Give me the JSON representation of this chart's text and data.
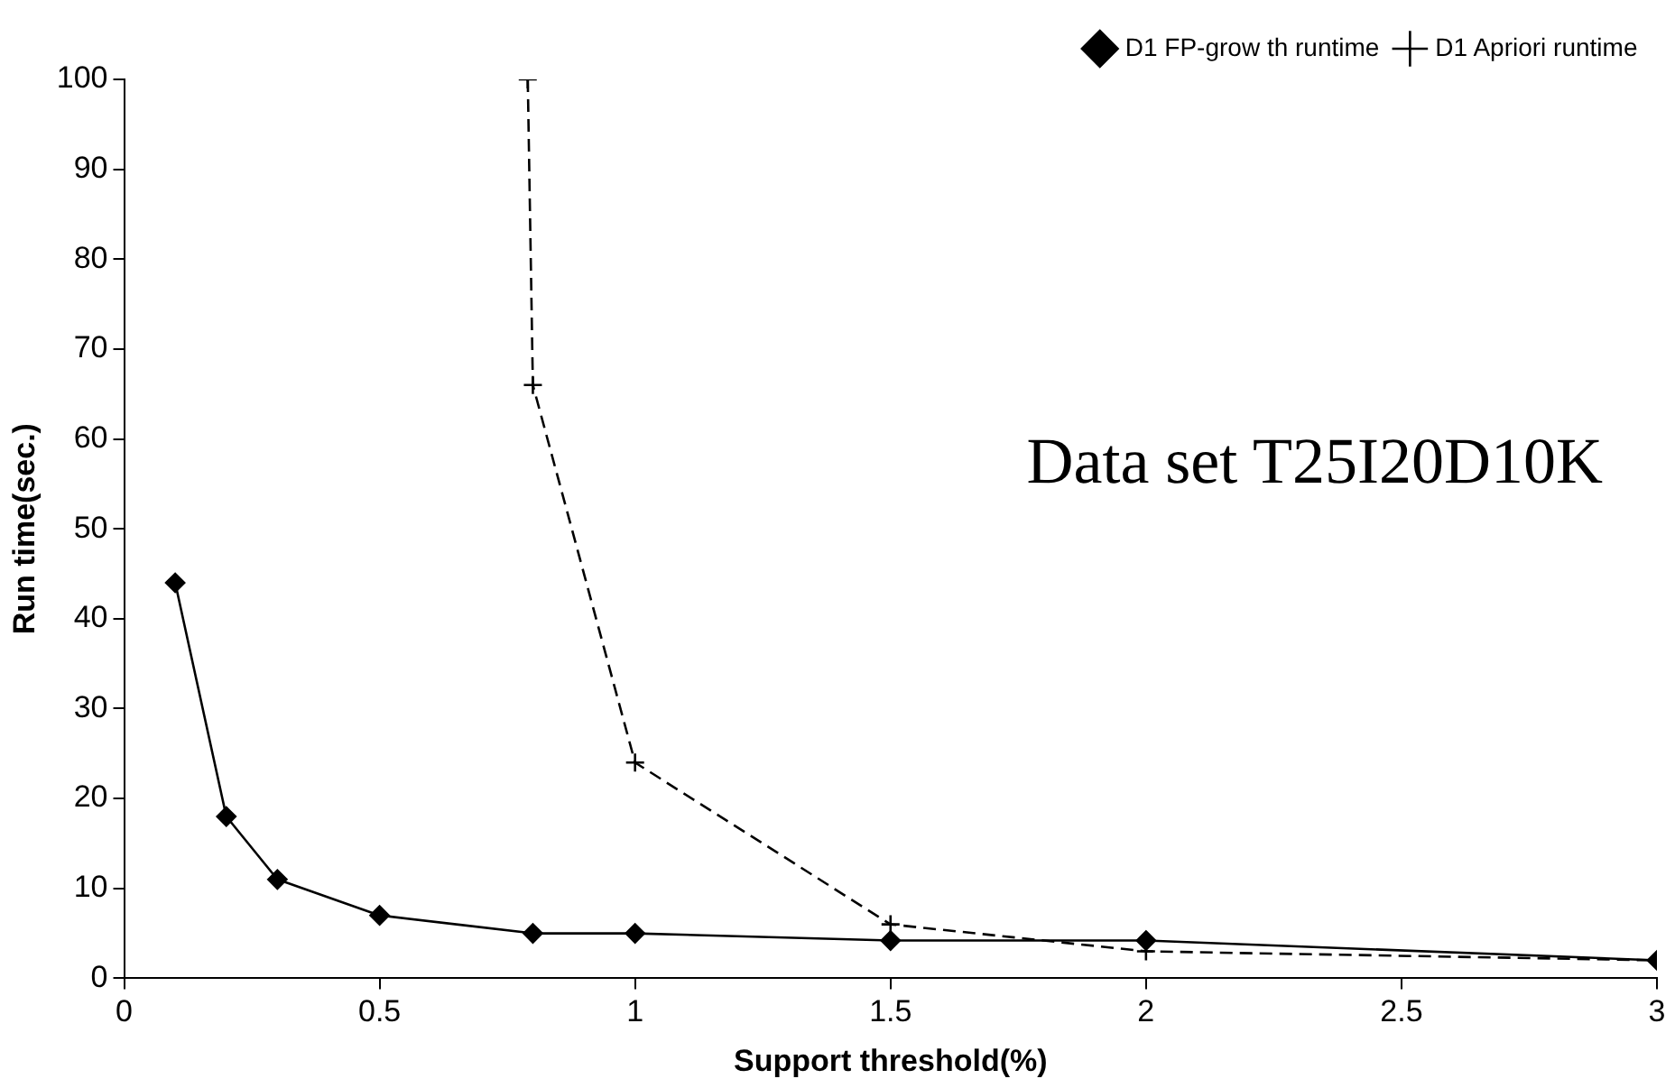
{
  "chart_data": {
    "type": "line",
    "xlabel": "Support threshold(%)",
    "ylabel": "Run time(sec.)",
    "xlim": [
      0,
      3
    ],
    "xticks": [
      0,
      0.5,
      1,
      1.5,
      2,
      2.5,
      3
    ],
    "ylim": [
      0,
      100
    ],
    "yticks": [
      0,
      10,
      20,
      30,
      40,
      50,
      60,
      70,
      80,
      90,
      100
    ],
    "grid": false,
    "legend": "top right",
    "annotations": [
      "Data set T25I20D10K"
    ],
    "series": [
      {
        "name": "D1 FP-grow th runtime",
        "color": "#000000",
        "marker": "diamond",
        "line_style": "solid",
        "x": [
          0.1,
          0.2,
          0.3,
          0.5,
          0.8,
          1,
          1.5,
          2,
          3
        ],
        "values": [
          44,
          18,
          11,
          7,
          5,
          5,
          4.2,
          4.2,
          2
        ]
      },
      {
        "name": "D1 Apriori runtime",
        "color": "#000000",
        "marker": "cross",
        "line_style": "dashed",
        "x": [
          0.79,
          0.8,
          1,
          1.5,
          2,
          3
        ],
        "values": [
          100,
          66,
          24,
          6,
          3,
          2
        ]
      }
    ]
  }
}
